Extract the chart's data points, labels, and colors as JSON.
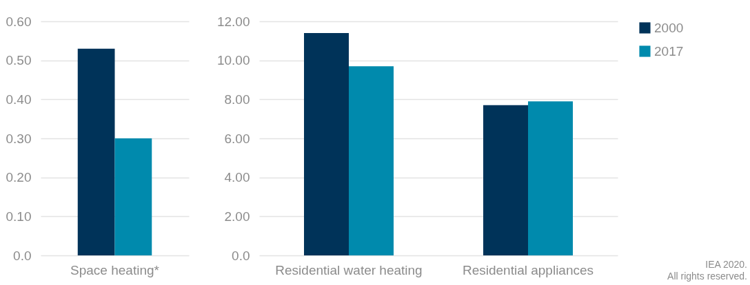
{
  "chart_data": [
    {
      "type": "bar",
      "categories": [
        "Space heating*"
      ],
      "series": [
        {
          "color": "#003359",
          "values": [
            0.53
          ]
        },
        {
          "color": "#008aad",
          "values": [
            0.3
          ]
        }
      ],
      "ylim": [
        0,
        0.6
      ],
      "yticks": [
        {
          "value": 0,
          "label": "0.0"
        },
        {
          "value": 0.1,
          "label": "0.10"
        },
        {
          "value": 0.2,
          "label": "0.20"
        },
        {
          "value": 0.3,
          "label": "0.30"
        },
        {
          "value": 0.4,
          "label": "0.40"
        },
        {
          "value": 0.5,
          "label": "0.50"
        },
        {
          "value": 0.6,
          "label": "0.60"
        }
      ],
      "grid": "y"
    },
    {
      "type": "bar",
      "categories": [
        "Residential water heating",
        "Residential appliances"
      ],
      "series": [
        {
          "name": "2000",
          "color": "#003359",
          "values": [
            11.4,
            7.7
          ]
        },
        {
          "name": "2017",
          "color": "#008aad",
          "values": [
            9.7,
            7.9
          ]
        }
      ],
      "ylim": [
        0,
        12
      ],
      "yticks": [
        {
          "value": 0,
          "label": "0.0"
        },
        {
          "value": 2,
          "label": "2.00"
        },
        {
          "value": 4,
          "label": "4.00"
        },
        {
          "value": 6,
          "label": "6.00"
        },
        {
          "value": 8,
          "label": "8.00"
        },
        {
          "value": 10,
          "label": "10.00"
        },
        {
          "value": 12,
          "label": "12.00"
        }
      ],
      "grid": "y",
      "legend": "top right",
      "annotations": [
        "IEA 2020.\nAll rights reserved."
      ]
    }
  ]
}
